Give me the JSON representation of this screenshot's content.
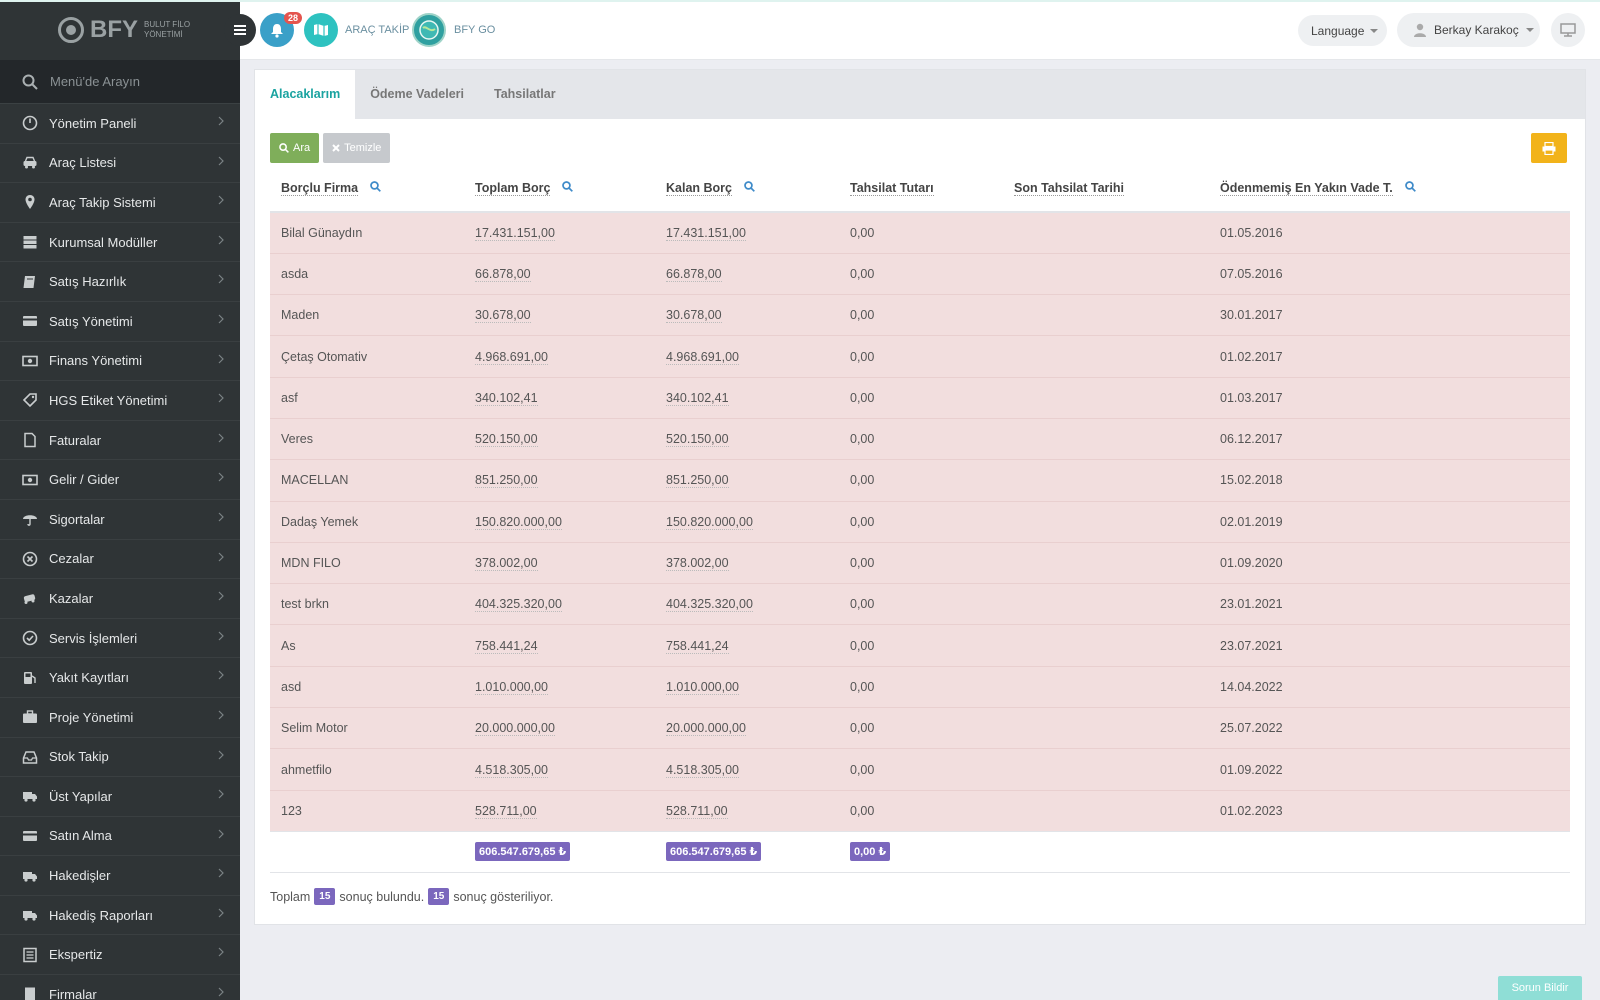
{
  "brand": {
    "name": "BFY",
    "subtitle_line1": "BULUT FİLO",
    "subtitle_line2": "YÖNETİMİ"
  },
  "sidebar": {
    "search_placeholder": "Menü'de Arayın",
    "items": [
      {
        "label": "Yönetim Paneli",
        "icon": "dashboard-icon"
      },
      {
        "label": "Araç Listesi",
        "icon": "car-icon"
      },
      {
        "label": "Araç Takip Sistemi",
        "icon": "map-pin-icon"
      },
      {
        "label": "Kurumsal Modüller",
        "icon": "server-icon"
      },
      {
        "label": "Satış Hazırlık",
        "icon": "book-icon"
      },
      {
        "label": "Satış Yönetimi",
        "icon": "card-icon"
      },
      {
        "label": "Finans Yönetimi",
        "icon": "money-icon"
      },
      {
        "label": "HGS Etiket Yönetimi",
        "icon": "tag-icon"
      },
      {
        "label": "Faturalar",
        "icon": "file-icon"
      },
      {
        "label": "Gelir / Gider",
        "icon": "money-icon"
      },
      {
        "label": "Sigortalar",
        "icon": "umbrella-icon"
      },
      {
        "label": "Cezalar",
        "icon": "x-circle-icon"
      },
      {
        "label": "Kazalar",
        "icon": "car-crash-icon"
      },
      {
        "label": "Servis İşlemleri",
        "icon": "check-circle-icon"
      },
      {
        "label": "Yakıt Kayıtları",
        "icon": "fuel-icon"
      },
      {
        "label": "Proje Yönetimi",
        "icon": "briefcase-icon"
      },
      {
        "label": "Stok Takip",
        "icon": "inbox-icon"
      },
      {
        "label": "Üst Yapılar",
        "icon": "truck-icon"
      },
      {
        "label": "Satın Alma",
        "icon": "card-icon"
      },
      {
        "label": "Hakedişler",
        "icon": "truck-icon"
      },
      {
        "label": "Hakediş Raporları",
        "icon": "truck-icon"
      },
      {
        "label": "Ekspertiz",
        "icon": "list-icon"
      },
      {
        "label": "Firmalar",
        "icon": "building-icon"
      }
    ]
  },
  "header": {
    "notification_count": "28",
    "link_tracking": "ARAÇ TAKİP",
    "link_go": "BFY GO",
    "language": "Language",
    "user_name": "Berkay Karakoç"
  },
  "tabs": [
    {
      "label": "Alacaklarım",
      "active": true
    },
    {
      "label": "Ödeme Vadeleri",
      "active": false
    },
    {
      "label": "Tahsilatlar",
      "active": false
    }
  ],
  "buttons": {
    "search": "Ara",
    "clear": "Temizle"
  },
  "table": {
    "columns": [
      "Borçlu Firma",
      "Toplam Borç",
      "Kalan Borç",
      "Tahsilat Tutarı",
      "Son Tahsilat Tarihi",
      "Ödenmemiş En Yakın Vade T."
    ],
    "rows": [
      [
        "Bilal Günaydın",
        "17.431.151,00",
        "17.431.151,00",
        "0,00",
        "",
        "01.05.2016"
      ],
      [
        "asda",
        "66.878,00",
        "66.878,00",
        "0,00",
        "",
        "07.05.2016"
      ],
      [
        "Maden",
        "30.678,00",
        "30.678,00",
        "0,00",
        "",
        "30.01.2017"
      ],
      [
        "Çetaş Otomativ",
        "4.968.691,00",
        "4.968.691,00",
        "0,00",
        "",
        "01.02.2017"
      ],
      [
        "asf",
        "340.102,41",
        "340.102,41",
        "0,00",
        "",
        "01.03.2017"
      ],
      [
        "Veres",
        "520.150,00",
        "520.150,00",
        "0,00",
        "",
        "06.12.2017"
      ],
      [
        "MACELLAN",
        "851.250,00",
        "851.250,00",
        "0,00",
        "",
        "15.02.2018"
      ],
      [
        "Dadaş Yemek",
        "150.820.000,00",
        "150.820.000,00",
        "0,00",
        "",
        "02.01.2019"
      ],
      [
        "MDN FILO",
        "378.002,00",
        "378.002,00",
        "0,00",
        "",
        "01.09.2020"
      ],
      [
        "test brkn",
        "404.325.320,00",
        "404.325.320,00",
        "0,00",
        "",
        "23.01.2021"
      ],
      [
        "As",
        "758.441,24",
        "758.441,24",
        "0,00",
        "",
        "23.07.2021"
      ],
      [
        "asd",
        "1.010.000,00",
        "1.010.000,00",
        "0,00",
        "",
        "14.04.2022"
      ],
      [
        "Selim Motor",
        "20.000.000,00",
        "20.000.000,00",
        "0,00",
        "",
        "25.07.2022"
      ],
      [
        "ahmetfilo",
        "4.518.305,00",
        "4.518.305,00",
        "0,00",
        "",
        "01.09.2022"
      ],
      [
        "123",
        "528.711,00",
        "528.711,00",
        "0,00",
        "",
        "01.02.2023"
      ]
    ],
    "totals": {
      "toplam": "606.547.679,65 ₺",
      "kalan": "606.547.679,65 ₺",
      "tahsilat": "0,00 ₺"
    }
  },
  "result": {
    "prefix": "Toplam",
    "found_count": "15",
    "found_text": "sonuç bulundu.",
    "shown_count": "15",
    "shown_text": "sonuç gösteriliyor."
  },
  "report_button": "Sorun Bildir",
  "colors": {
    "accent": "#1aa3a0",
    "row_danger": "#f2dede",
    "sum_badge": "#7b67bd",
    "print_button": "#f2b31a",
    "search_button": "#7fae5a"
  }
}
